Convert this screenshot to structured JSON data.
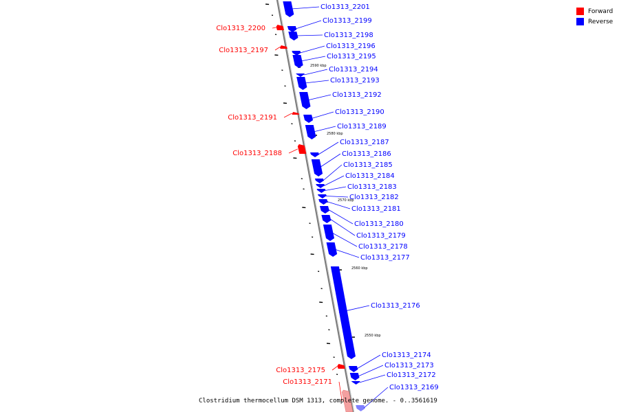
{
  "title": "Clostridium thermocellum DSM 1313, complete genome. - 0..3561619",
  "legend": [
    {
      "label": "Forward",
      "color": "#ff0000"
    },
    {
      "label": "Reverse",
      "color": "#0000ff"
    }
  ],
  "colors": {
    "forward": "#ff0000",
    "reverse": "#0000ff",
    "backbone": "#888888"
  },
  "ticks": [
    "2590 kbp",
    "2580 kbp",
    "2570 kbp",
    "2560 kbp",
    "2550 kbp"
  ],
  "genes": [
    {
      "name": "Clo1313_2201",
      "strand": "reverse"
    },
    {
      "name": "Clo1313_2200",
      "strand": "forward"
    },
    {
      "name": "Clo1313_2199",
      "strand": "reverse"
    },
    {
      "name": "Clo1313_2198",
      "strand": "reverse"
    },
    {
      "name": "Clo1313_2197",
      "strand": "forward"
    },
    {
      "name": "Clo1313_2196",
      "strand": "reverse"
    },
    {
      "name": "Clo1313_2195",
      "strand": "reverse"
    },
    {
      "name": "Clo1313_2194",
      "strand": "reverse"
    },
    {
      "name": "Clo1313_2193",
      "strand": "reverse"
    },
    {
      "name": "Clo1313_2192",
      "strand": "reverse"
    },
    {
      "name": "Clo1313_2191",
      "strand": "forward"
    },
    {
      "name": "Clo1313_2190",
      "strand": "reverse"
    },
    {
      "name": "Clo1313_2189",
      "strand": "reverse"
    },
    {
      "name": "Clo1313_2188",
      "strand": "forward"
    },
    {
      "name": "Clo1313_2187",
      "strand": "reverse"
    },
    {
      "name": "Clo1313_2186",
      "strand": "reverse"
    },
    {
      "name": "Clo1313_2185",
      "strand": "reverse"
    },
    {
      "name": "Clo1313_2184",
      "strand": "reverse"
    },
    {
      "name": "Clo1313_2183",
      "strand": "reverse"
    },
    {
      "name": "Clo1313_2182",
      "strand": "reverse"
    },
    {
      "name": "Clo1313_2181",
      "strand": "reverse"
    },
    {
      "name": "Clo1313_2180",
      "strand": "reverse"
    },
    {
      "name": "Clo1313_2179",
      "strand": "reverse"
    },
    {
      "name": "Clo1313_2178",
      "strand": "reverse"
    },
    {
      "name": "Clo1313_2177",
      "strand": "reverse"
    },
    {
      "name": "Clo1313_2176",
      "strand": "reverse"
    },
    {
      "name": "Clo1313_2175",
      "strand": "forward"
    },
    {
      "name": "Clo1313_2174",
      "strand": "reverse"
    },
    {
      "name": "Clo1313_2173",
      "strand": "reverse"
    },
    {
      "name": "Clo1313_2172",
      "strand": "reverse"
    },
    {
      "name": "Clo1313_2171",
      "strand": "forward"
    },
    {
      "name": "Clo1313_2169",
      "strand": "reverse"
    }
  ]
}
